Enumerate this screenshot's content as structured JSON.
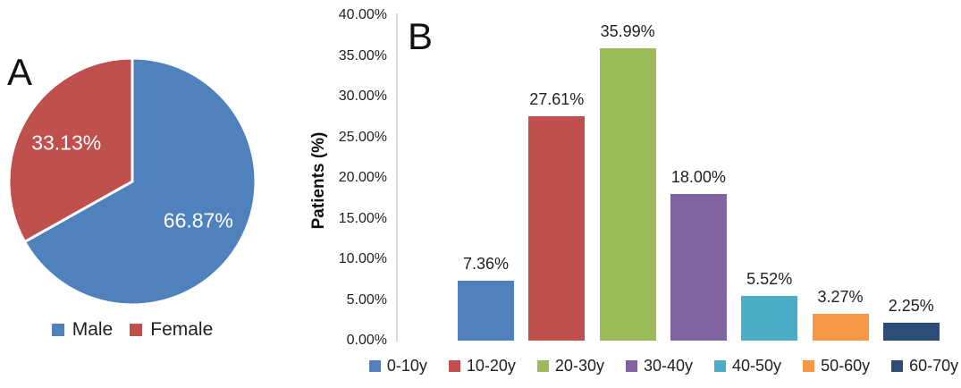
{
  "chart_data": [
    {
      "panel_label": "A",
      "type": "pie",
      "labels": [
        "Male",
        "Female"
      ],
      "values": [
        66.87,
        33.13
      ],
      "data_labels": [
        "66.87%",
        "33.13%"
      ],
      "colors": [
        "#4F81BD",
        "#C0504D"
      ],
      "data_label_color": "#FFFFFF",
      "start_angle_deg": 0,
      "direction": "clockwise",
      "legend_position": "bottom"
    },
    {
      "panel_label": "B",
      "type": "bar",
      "categories": [
        "0-10y",
        "10-20y",
        "20-30y",
        "30-40y",
        "40-50y",
        "50-60y",
        "60-70y"
      ],
      "values": [
        7.36,
        27.61,
        35.99,
        18.0,
        5.52,
        3.27,
        2.25
      ],
      "data_labels": [
        "7.36%",
        "27.61%",
        "35.99%",
        "18.00%",
        "5.52%",
        "3.27%",
        "2.25%"
      ],
      "colors": [
        "#4F81BD",
        "#C0504D",
        "#9BBB59",
        "#8064A2",
        "#4BACC6",
        "#F79646",
        "#2C4D75"
      ],
      "ylabel": "Patients (%)",
      "ylim": [
        0,
        40
      ],
      "y_ticks": [
        {
          "value": 0,
          "label": "0.00%"
        },
        {
          "value": 5,
          "label": "5.00%"
        },
        {
          "value": 10,
          "label": "10.00%"
        },
        {
          "value": 15,
          "label": "15.00%"
        },
        {
          "value": 20,
          "label": "20.00%"
        },
        {
          "value": 25,
          "label": "25.00%"
        },
        {
          "value": 30,
          "label": "30.00%"
        },
        {
          "value": 35,
          "label": "35.00%"
        },
        {
          "value": 40,
          "label": "40.00%"
        }
      ],
      "grid": false,
      "axis_line_color": "#D9D9D9",
      "legend_position": "bottom"
    }
  ]
}
